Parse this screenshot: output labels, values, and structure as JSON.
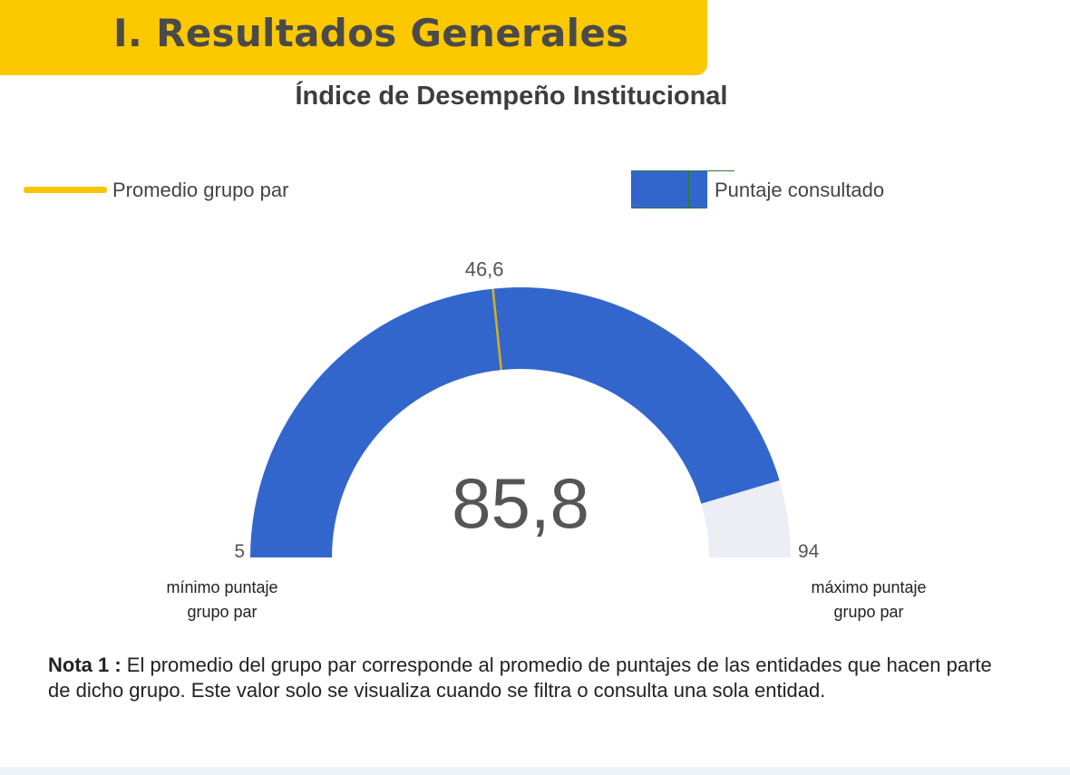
{
  "header": {
    "title": "I. Resultados Generales"
  },
  "chart_data": {
    "type": "gauge",
    "title": "Índice de Desempeño Institucional",
    "min": 5,
    "max": 94,
    "min_label": "5",
    "max_label": "94",
    "value": 85.8,
    "value_label": "85,8",
    "reference": 46.6,
    "reference_label": "46,6",
    "min_caption": [
      "mínimo puntaje",
      "grupo par"
    ],
    "max_caption": [
      "máximo puntaje",
      "grupo par"
    ],
    "legend": [
      {
        "label": "Promedio grupo par",
        "color": "#f7c600"
      },
      {
        "label": "Puntaje consultado",
        "color": "#3366cc"
      }
    ],
    "colors": {
      "fill": "#3366cc",
      "track": "#ededf6",
      "reference": "#d4b21c",
      "text": "#555555"
    }
  },
  "note": {
    "label": "Nota 1 :",
    "text": " El promedio del grupo par corresponde al promedio de puntajes de las entidades que hacen parte de dicho grupo.  Este valor solo se visualiza cuando se filtra o consulta una sola entidad."
  }
}
